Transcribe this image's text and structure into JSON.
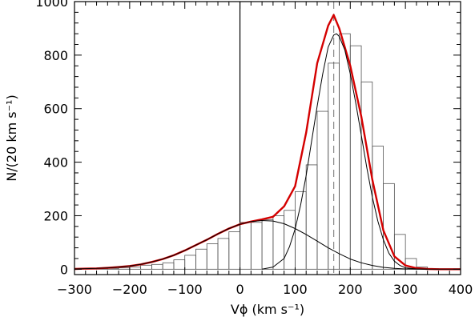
{
  "chart_data": {
    "type": "line",
    "title": "",
    "xlabel": "Vϕ (km s⁻¹)",
    "ylabel": "N/(20 km s⁻¹)",
    "xlim": [
      -300,
      400
    ],
    "ylim": [
      -20,
      1000
    ],
    "grid": false,
    "legend": "none",
    "x_ticks": [
      -300,
      -200,
      -100,
      0,
      100,
      200,
      300,
      400
    ],
    "x_tick_labels": [
      "−300",
      "−200",
      "−100",
      "0",
      "100",
      "200",
      "300",
      "400"
    ],
    "y_ticks": [
      0,
      200,
      400,
      600,
      800,
      1000
    ],
    "y_tick_labels": [
      "0",
      "200",
      "400",
      "600",
      "800",
      "1000"
    ],
    "reference_lines": [
      {
        "x": 0,
        "style": "solid",
        "color": "#000000"
      },
      {
        "x": 170,
        "style": "dashed",
        "color": "#888888"
      }
    ],
    "histogram": {
      "bin_width": 20,
      "bin_starts": [
        -300,
        -280,
        -260,
        -240,
        -220,
        -200,
        -180,
        -160,
        -140,
        -120,
        -100,
        -80,
        -60,
        -40,
        -20,
        0,
        20,
        40,
        60,
        80,
        100,
        120,
        140,
        160,
        180,
        200,
        220,
        240,
        260,
        280,
        300,
        320,
        340,
        360,
        380
      ],
      "counts": [
        0,
        1,
        2,
        3,
        5,
        8,
        15,
        18,
        24,
        35,
        52,
        75,
        95,
        115,
        140,
        175,
        175,
        185,
        200,
        220,
        290,
        390,
        590,
        770,
        880,
        835,
        700,
        460,
        320,
        130,
        40,
        8,
        2,
        0,
        0
      ]
    },
    "series": [
      {
        "color": "#d40000",
        "x": [
          -300,
          -280,
          -260,
          -240,
          -220,
          -200,
          -180,
          -160,
          -140,
          -120,
          -100,
          -80,
          -60,
          -40,
          -20,
          0,
          20,
          40,
          60,
          80,
          100,
          120,
          140,
          160,
          170,
          180,
          200,
          220,
          240,
          260,
          280,
          300,
          320,
          340,
          360,
          380,
          400
        ],
        "y": [
          1,
          2,
          3,
          5,
          8,
          12,
          18,
          27,
          38,
          52,
          70,
          90,
          110,
          132,
          152,
          168,
          178,
          186,
          196,
          235,
          310,
          510,
          770,
          910,
          950,
          900,
          760,
          570,
          335,
          145,
          48,
          14,
          4,
          1,
          0,
          0,
          0
        ]
      },
      {
        "color": "#000000",
        "x": [
          -300,
          -280,
          -260,
          -240,
          -220,
          -200,
          -180,
          -160,
          -140,
          -120,
          -100,
          -80,
          -60,
          -40,
          -20,
          0,
          20,
          40,
          60,
          80,
          100,
          120,
          140,
          160,
          180,
          200,
          220,
          240,
          260,
          280,
          300,
          320,
          340,
          360,
          380,
          400
        ],
        "y": [
          1,
          2,
          3,
          5,
          8,
          12,
          18,
          27,
          38,
          52,
          70,
          90,
          110,
          132,
          152,
          168,
          178,
          182,
          180,
          170,
          152,
          130,
          105,
          80,
          58,
          38,
          24,
          14,
          7,
          3,
          1,
          0,
          0,
          0,
          0,
          0
        ]
      },
      {
        "color": "#000000",
        "x": [
          40,
          60,
          80,
          90,
          100,
          110,
          120,
          130,
          140,
          150,
          160,
          170,
          175,
          180,
          190,
          200,
          210,
          220,
          230,
          240,
          250,
          260,
          270,
          280,
          290,
          300,
          320,
          340
        ],
        "y": [
          0,
          8,
          40,
          85,
          150,
          240,
          350,
          480,
          610,
          730,
          830,
          875,
          880,
          870,
          820,
          730,
          620,
          500,
          380,
          270,
          180,
          110,
          60,
          30,
          14,
          5,
          1,
          0
        ]
      }
    ]
  }
}
